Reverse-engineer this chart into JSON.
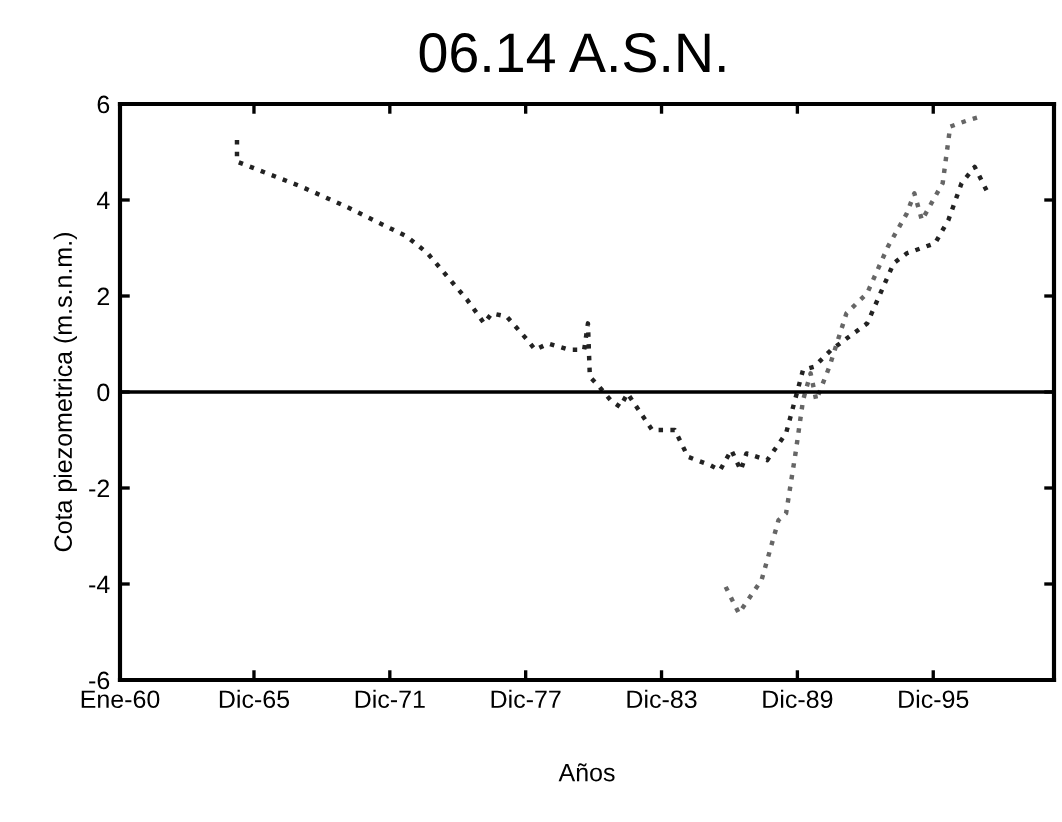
{
  "chart_data": {
    "type": "line",
    "title": "06.14 A.S.N.",
    "xlabel": "Años",
    "ylabel": "Cota piezometrica (m.s.n.m.)",
    "xlim": [
      "1960-01",
      "2001-04"
    ],
    "ylim": [
      -6,
      6
    ],
    "yticks": [
      -6,
      -4,
      -2,
      0,
      2,
      4,
      6
    ],
    "xticks": [
      {
        "value": "1960-01",
        "label": "Ene-60"
      },
      {
        "value": "1965-12",
        "label": "Dic-65"
      },
      {
        "value": "1971-12",
        "label": "Dic-71"
      },
      {
        "value": "1977-12",
        "label": "Dic-77"
      },
      {
        "value": "1983-12",
        "label": "Dic-83"
      },
      {
        "value": "1989-12",
        "label": "Dic-89"
      },
      {
        "value": "1995-12",
        "label": "Dic-95"
      }
    ],
    "ref_lines": [
      {
        "axis": "y",
        "value": 0,
        "color": "#000000",
        "line_style": "solid"
      }
    ],
    "line_style": "dotted",
    "series": [
      {
        "color": "#222222",
        "x": [
          "1965-03",
          "1965-03",
          "1968-01",
          "1970-01",
          "1972-09",
          "1973-08",
          "1975-05",
          "1976-02",
          "1976-06",
          "1977-02",
          "1978-01",
          "1978-05",
          "1978-12",
          "1979-11",
          "1980-07",
          "1980-09",
          "1980-10",
          "1981-03",
          "1981-09",
          "1982-02",
          "1982-06",
          "1983-07",
          "1984-07",
          "1985-02",
          "1986-02",
          "1986-07",
          "1987-01",
          "1987-06",
          "1987-09",
          "1988-08",
          "1989-06",
          "1990-03",
          "1990-09",
          "1991-06",
          "1993-01",
          "1994-03",
          "1994-10",
          "1996-01",
          "1996-08",
          "1997-03",
          "1997-10",
          "1998-05"
        ],
        "values": [
          5.25,
          4.8,
          4.28,
          3.86,
          3.24,
          2.89,
          1.92,
          1.43,
          1.64,
          1.57,
          1.08,
          0.88,
          1.01,
          0.88,
          0.88,
          1.43,
          0.32,
          0.11,
          -0.17,
          -0.31,
          -0.03,
          -0.79,
          -0.79,
          -1.35,
          -1.53,
          -1.63,
          -1.21,
          -1.63,
          -1.28,
          -1.42,
          -0.86,
          0.46,
          0.53,
          0.88,
          1.43,
          2.68,
          2.89,
          3.1,
          3.58,
          4.35,
          4.69,
          4.14
        ]
      },
      {
        "color": "#666666",
        "x": [
          "1986-10",
          "1987-05",
          "1988-05",
          "1989-02",
          "1989-06",
          "1989-11",
          "1990-03",
          "1990-07",
          "1990-10",
          "1991-05",
          "1992-02",
          "1993-01",
          "1993-12",
          "1994-10",
          "1995-02",
          "1995-06",
          "1996-05",
          "1996-09",
          "1997-07",
          "1998-02"
        ],
        "values": [
          -4.06,
          -4.61,
          -3.92,
          -2.67,
          -2.53,
          -1.28,
          -0.17,
          0.39,
          -0.17,
          0.53,
          1.64,
          2.06,
          3.03,
          3.72,
          4.14,
          3.58,
          4.35,
          5.53,
          5.67,
          5.75
        ]
      }
    ]
  }
}
